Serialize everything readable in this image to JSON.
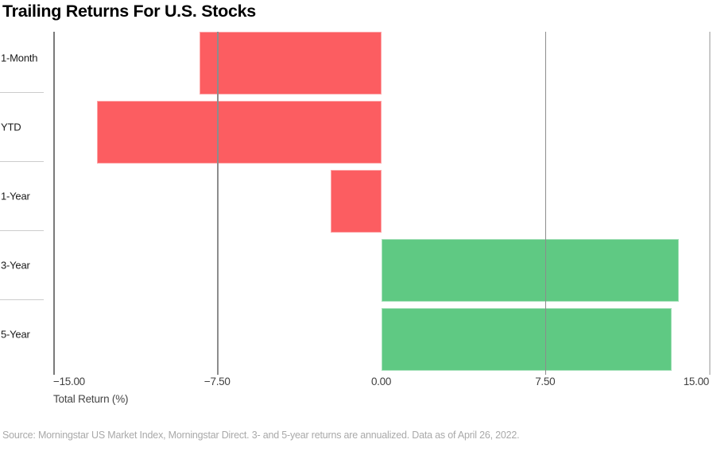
{
  "title": "Trailing Returns For U.S. Stocks",
  "chart_data": {
    "type": "bar",
    "orientation": "horizontal",
    "title": "Trailing Returns For U.S. Stocks",
    "categories": [
      "1-Month",
      "YTD",
      "1-Year",
      "3-Year",
      "5-Year"
    ],
    "values": [
      -8.3,
      -13.0,
      -2.3,
      13.6,
      13.3
    ],
    "xlabel": "Total Return (%)",
    "xlim": [
      -15,
      15
    ],
    "xticks": [
      -15,
      -7.5,
      0,
      7.5,
      15
    ],
    "xtick_labels": [
      "−15.00",
      "−7.50",
      "0.00",
      "7.50",
      "15.00"
    ],
    "gridlines_x": [
      -7.5,
      7.5,
      15
    ],
    "legend": "none",
    "bar_colors": {
      "negative": "#FC5D61",
      "positive": "#5FC983"
    }
  },
  "footer": {
    "source_note": "Source: Morningstar US Market Index, Morningstar Direct. 3- and 5-year returns are annualized. Data as of April 26, 2022."
  },
  "colors": {
    "negative_bar": "#FC5D61",
    "positive_bar": "#5FC983",
    "axis_line": "#7A7A7A",
    "gridline": "#8C8C8C",
    "edge_gridline": "#C9C9C9",
    "row_divider": "#CCCCCC",
    "tick_label": "#404040",
    "category_label": "#1A1A1A",
    "axis_title": "#454545",
    "source_text": "#A9A9A9"
  }
}
